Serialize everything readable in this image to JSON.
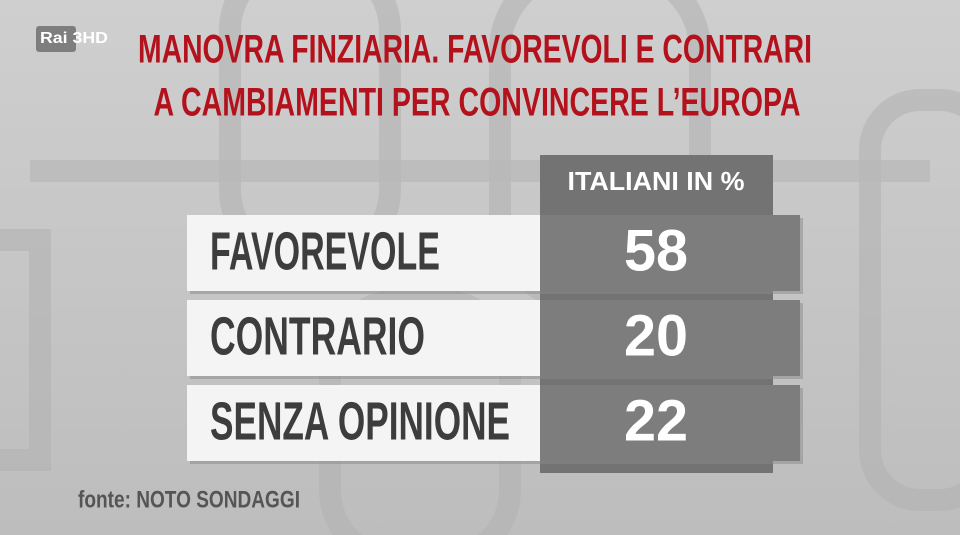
{
  "logo": "Rai 3HD",
  "header": {
    "title_lines": [
      "MANOVRA FINZIARIA. FAVOREVOLI E CONTRARI",
      "A CAMBIAMENTI PER CONVINCERE L’EUROPA"
    ]
  },
  "table": {
    "column_header": "ITALIANI IN %",
    "rows": [
      [
        "FAVOREVOLE",
        "58"
      ],
      [
        "CONTRARIO",
        "20"
      ],
      [
        "SENZA OPINIONE",
        "22"
      ]
    ]
  },
  "source": "fonte: NOTO SONDAGGI"
}
